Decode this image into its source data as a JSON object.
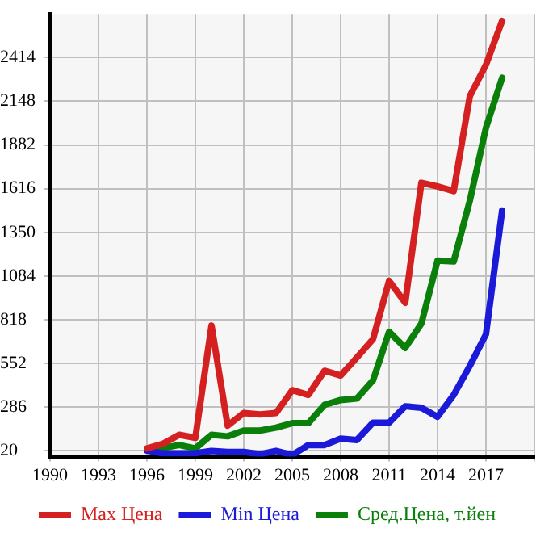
{
  "chart_data": {
    "type": "line",
    "x": [
      1996,
      1997,
      1998,
      1999,
      2000,
      2001,
      2002,
      2003,
      2004,
      2005,
      2006,
      2007,
      2008,
      2009,
      2010,
      2011,
      2012,
      2013,
      2014,
      2015,
      2016,
      2017,
      2018
    ],
    "series": [
      {
        "name": "Max Цена",
        "color": "#d42020",
        "values": [
          35,
          64,
          118,
          100,
          783,
          174,
          251,
          242,
          251,
          390,
          361,
          508,
          479,
          588,
          700,
          1055,
          922,
          1652,
          1630,
          1602,
          2179,
          2370,
          2637
        ]
      },
      {
        "name": "Min Цена",
        "color": "#1a1ad8",
        "values": [
          22,
          5,
          5,
          6,
          20,
          14,
          14,
          0,
          20,
          -5,
          56,
          56,
          95,
          86,
          192,
          192,
          292,
          283,
          228,
          361,
          538,
          730,
          1483
        ]
      },
      {
        "name": "Сред.Цена, т.йен",
        "color": "#0a800a",
        "values": [
          26,
          38,
          56,
          35,
          118,
          109,
          144,
          144,
          162,
          189,
          189,
          301,
          330,
          339,
          449,
          745,
          647,
          795,
          1179,
          1173,
          1543,
          1987,
          2291
        ]
      }
    ],
    "xlim": [
      1990,
      2020
    ],
    "xticks": [
      1990,
      1993,
      1996,
      1999,
      2002,
      2005,
      2008,
      2011,
      2014,
      2017,
      {
        "value": 2020,
        "label": null
      }
    ],
    "ylim": [
      -15,
      2680
    ],
    "yticks": [
      20,
      286,
      552,
      818,
      1084,
      1350,
      1616,
      1882,
      2148,
      2414
    ],
    "grid": true,
    "legend": "bottom",
    "marker": "none",
    "line_style": "solid"
  }
}
